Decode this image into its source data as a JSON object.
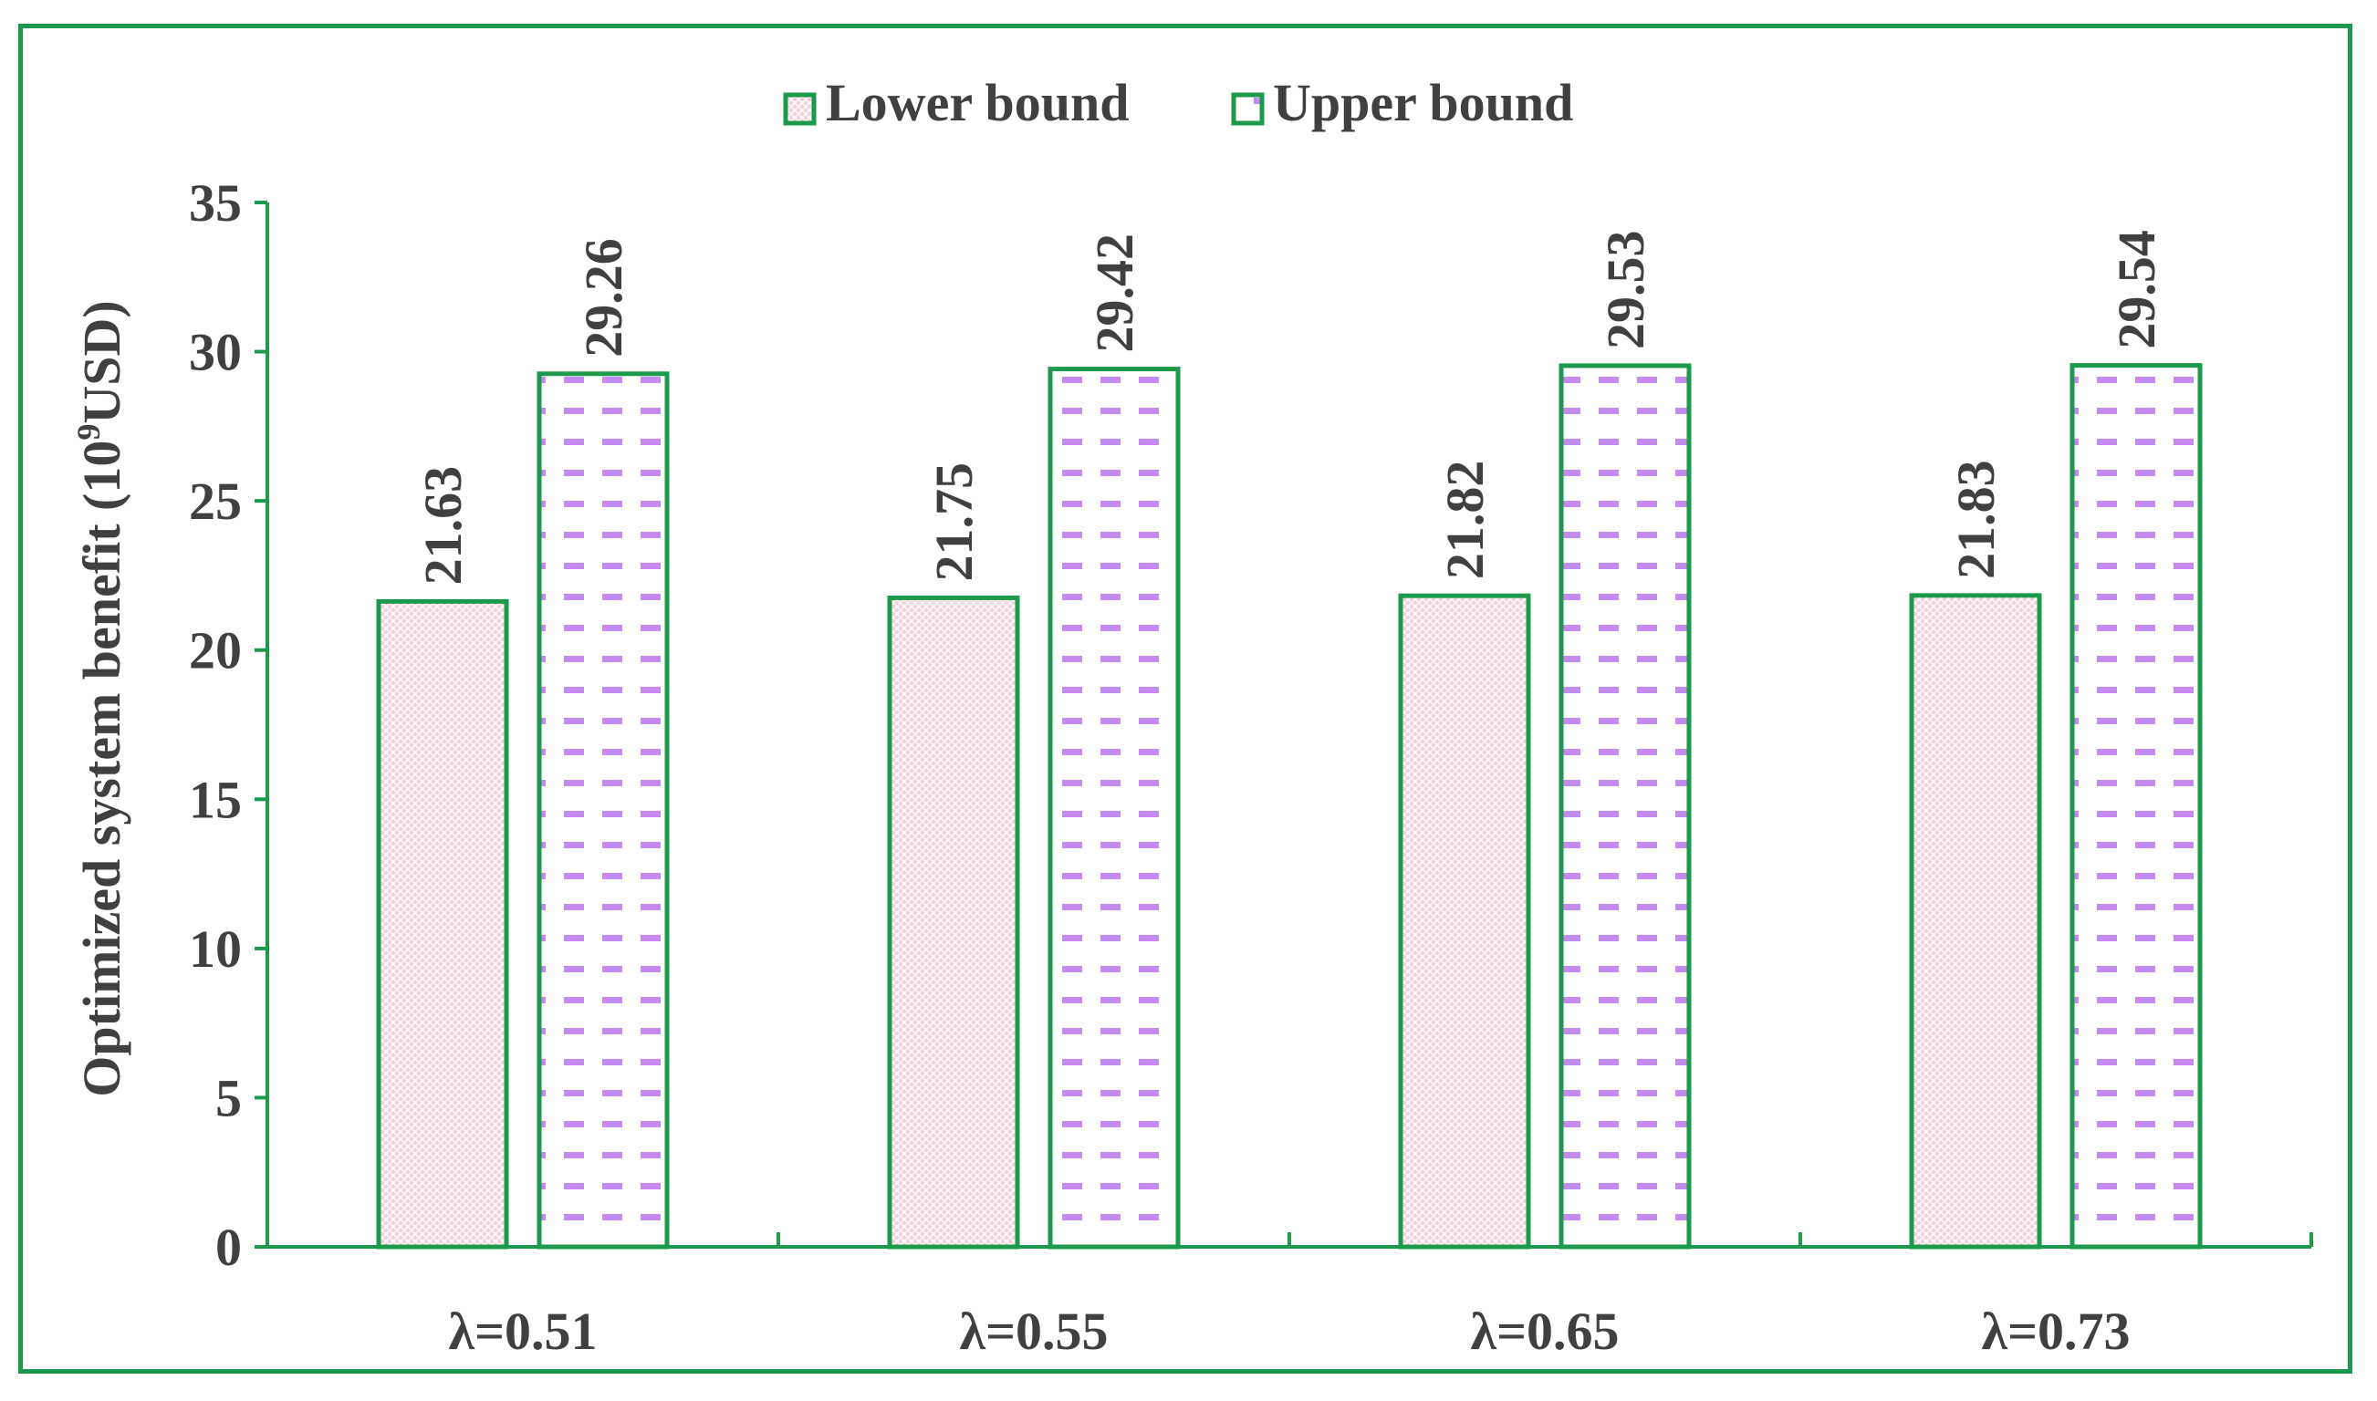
{
  "colors": {
    "frame": "#1a9a4a",
    "axis": "#1a9a4a",
    "text": "#404040",
    "bar_outline": "#1a9a4a",
    "lower_fill_a": "#f7cddd",
    "lower_fill_b": "#ffffff",
    "upper_dash": "#c48af0"
  },
  "chart_data": {
    "type": "bar",
    "categories": [
      "λ=0.51",
      "λ=0.55",
      "λ=0.65",
      "λ=0.73"
    ],
    "series": [
      {
        "name": "Lower bound",
        "values": [
          21.63,
          21.75,
          21.82,
          21.83
        ],
        "data_labels": [
          "21.63",
          "21.75",
          "21.82",
          "21.83"
        ],
        "pattern": "checker-pink"
      },
      {
        "name": "Upper bound",
        "values": [
          29.26,
          29.42,
          29.53,
          29.54
        ],
        "data_labels": [
          "29.26",
          "29.42",
          "29.53",
          "29.54"
        ],
        "pattern": "dash-purple"
      }
    ],
    "ylabel_main": "Optimized  system benefit (10",
    "ylabel_sup": "9",
    "ylabel_tail": "USD)",
    "ylim": [
      0,
      35
    ],
    "yticks": [
      0,
      5,
      10,
      15,
      20,
      25,
      30,
      35
    ],
    "ytick_labels": [
      "0",
      "5",
      "10",
      "15",
      "20",
      "25",
      "30",
      "35"
    ],
    "grid": false,
    "legend_position": "top-center"
  }
}
